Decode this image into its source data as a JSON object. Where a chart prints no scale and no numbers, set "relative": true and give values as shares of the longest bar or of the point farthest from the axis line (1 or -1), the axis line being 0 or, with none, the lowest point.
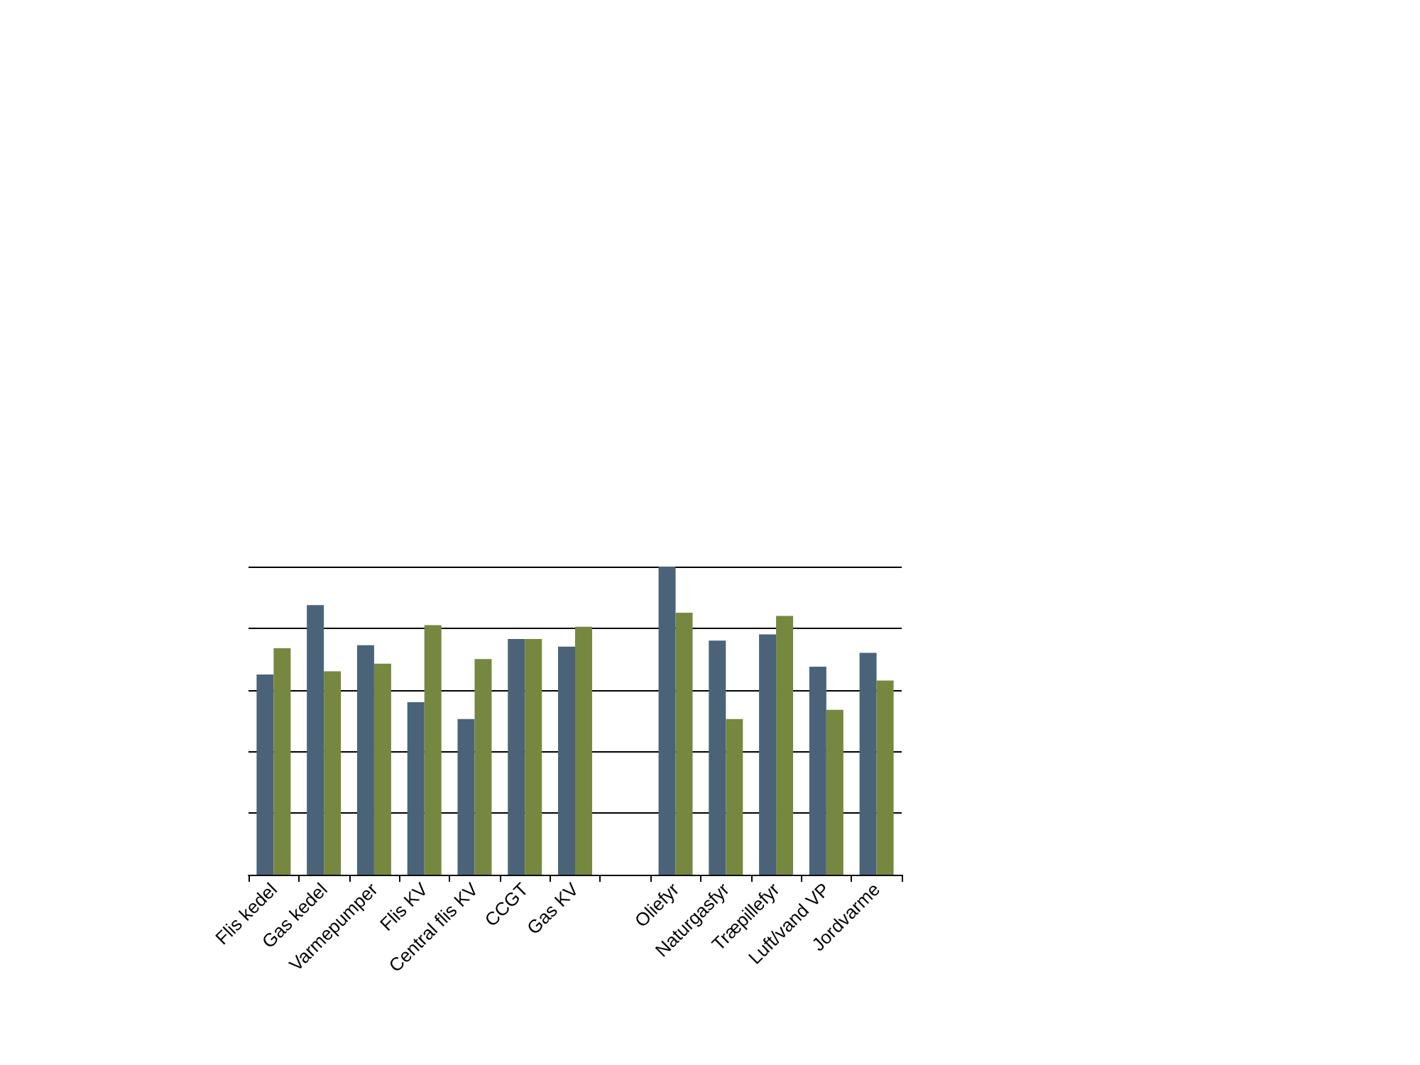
{
  "chart_data": {
    "type": "bar",
    "relative": true,
    "grid": "y",
    "categories": [
      "Flis kedel",
      "Gas kedel",
      "Varmepumper",
      "Flis KV",
      "Central flis KV",
      "CCGT",
      "Gas KV",
      null,
      "Oliefyr",
      "Naturgasfyr",
      "Træpillefyr",
      "Luft/vand VP",
      "Jordvarme"
    ],
    "series": [
      {
        "color": "#4a6378",
        "values": [
          0.65,
          0.875,
          0.745,
          0.56,
          0.505,
          0.765,
          0.74,
          null,
          1,
          0.76,
          0.78,
          0.675,
          0.72
        ]
      },
      {
        "color": "#76883f",
        "values": [
          0.735,
          0.66,
          0.685,
          0.81,
          0.7,
          0.765,
          0.805,
          null,
          0.85,
          0.505,
          0.84,
          0.535,
          0.63
        ]
      }
    ]
  }
}
